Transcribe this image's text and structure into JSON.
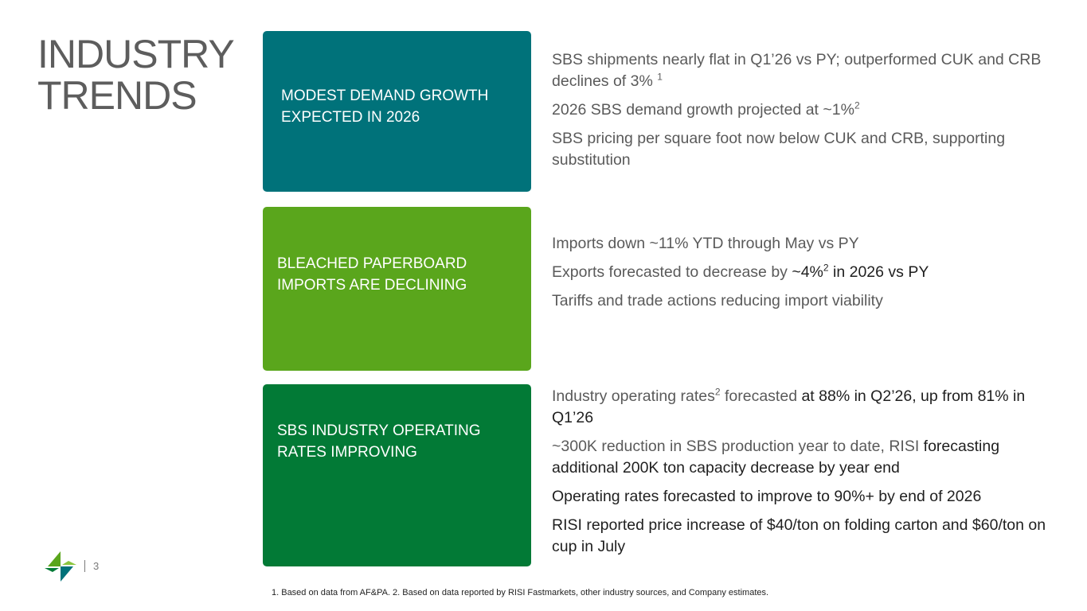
{
  "title": {
    "line1": "INDUSTRY",
    "line2": "TRENDS"
  },
  "cards": [
    {
      "label": "MODEST DEMAND GROWTH EXPECTED IN 2026"
    },
    {
      "label": "BLEACHED PAPERBOARD IMPORTS ARE DECLINING"
    },
    {
      "label": "SBS INDUSTRY OPERATING RATES IMPROVING"
    }
  ],
  "section1": {
    "b1_text": "SBS shipments nearly flat in Q1’26 vs PY; outperformed CUK and CRB declines of 3% ",
    "b1_sup": "1",
    "b2_text": "2026 SBS demand growth projected at ~1%",
    "b2_sup": "2",
    "b3_text": "SBS pricing per square foot now below CUK and CRB, supporting substitution"
  },
  "section2": {
    "b1_text": "Imports down ~11% YTD through May vs PY",
    "b2_text_a": "Exports forecasted to decrease by ",
    "b2_text_b": "~4%",
    "b2_sup": "2",
    "b2_text_c": " in 2026 vs PY",
    "b3_text": "Tariffs and trade actions reducing import viability"
  },
  "section3": {
    "b1_text_a": "Industry operating rates",
    "b1_sup": "2",
    "b1_text_b": " forecasted ",
    "b1_text_c": "at 88% in Q2’26, up from 81% in Q1’26",
    "b2_text_a": "~300K reduction in SBS production year to date, RISI ",
    "b2_text_b": "forecasting additional 200K ton capacity decrease by year end",
    "b3_text": "Operating rates forecasted to improve to 90%+ by end of 2026",
    "b4_text": "RISI reported price increase of $40/ton on folding carton and $60/ton on cup in July"
  },
  "footer": {
    "page_number": "3",
    "footnote": "1. Based on data from AF&PA. 2. Based on data reported by RISI Fastmarkets, other industry sources, and Company estimates."
  },
  "colors": {
    "teal": "#00727a",
    "light_green": "#5aa61c",
    "dark_green": "#027a36"
  },
  "icons": {
    "logo": "company-logo-icon"
  }
}
